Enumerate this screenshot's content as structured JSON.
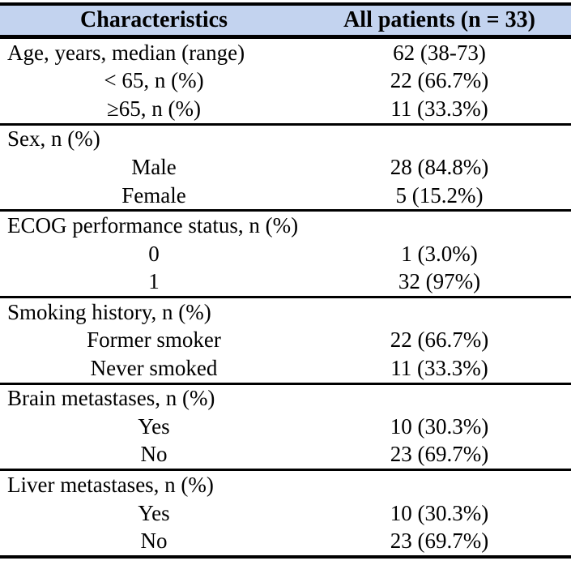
{
  "table": {
    "title_row": {
      "characteristics": "Characteristics",
      "all_patients": "All patients (n = 33)"
    },
    "style": {
      "header_bg": "#C3D3EF",
      "border_color": "#000000",
      "text_color": "#000000"
    },
    "sections": [
      {
        "rows": [
          {
            "label": "Age, years, median (range)",
            "value": "62 (38-73)",
            "align": "left"
          },
          {
            "label": "< 65, n (%)",
            "value": "22 (66.7%)",
            "align": "center"
          },
          {
            "label": "≥65, n (%)",
            "value": "11 (33.3%)",
            "align": "center"
          }
        ]
      },
      {
        "rows": [
          {
            "label": "Sex, n (%)",
            "value": "",
            "align": "left"
          },
          {
            "label": "Male",
            "value": "28 (84.8%)",
            "align": "center"
          },
          {
            "label": "Female",
            "value": "5 (15.2%)",
            "align": "center"
          }
        ]
      },
      {
        "rows": [
          {
            "label": "ECOG performance status, n (%)",
            "value": "",
            "align": "left"
          },
          {
            "label": "0",
            "value": "1 (3.0%)",
            "align": "center"
          },
          {
            "label": "1",
            "value": "32 (97%)",
            "align": "center"
          }
        ]
      },
      {
        "rows": [
          {
            "label": "Smoking history, n (%)",
            "value": "",
            "align": "left"
          },
          {
            "label": "Former smoker",
            "value": "22 (66.7%)",
            "align": "center"
          },
          {
            "label": "Never smoked",
            "value": "11 (33.3%)",
            "align": "center"
          }
        ]
      },
      {
        "rows": [
          {
            "label": "Brain metastases, n (%)",
            "value": "",
            "align": "left"
          },
          {
            "label": "Yes",
            "value": "10 (30.3%)",
            "align": "center"
          },
          {
            "label": "No",
            "value": "23 (69.7%)",
            "align": "center"
          }
        ]
      },
      {
        "rows": [
          {
            "label": "Liver metastases, n (%)",
            "value": "",
            "align": "left"
          },
          {
            "label": "Yes",
            "value": "10 (30.3%)",
            "align": "center"
          },
          {
            "label": "No",
            "value": "23 (69.7%)",
            "align": "center"
          }
        ]
      }
    ]
  }
}
